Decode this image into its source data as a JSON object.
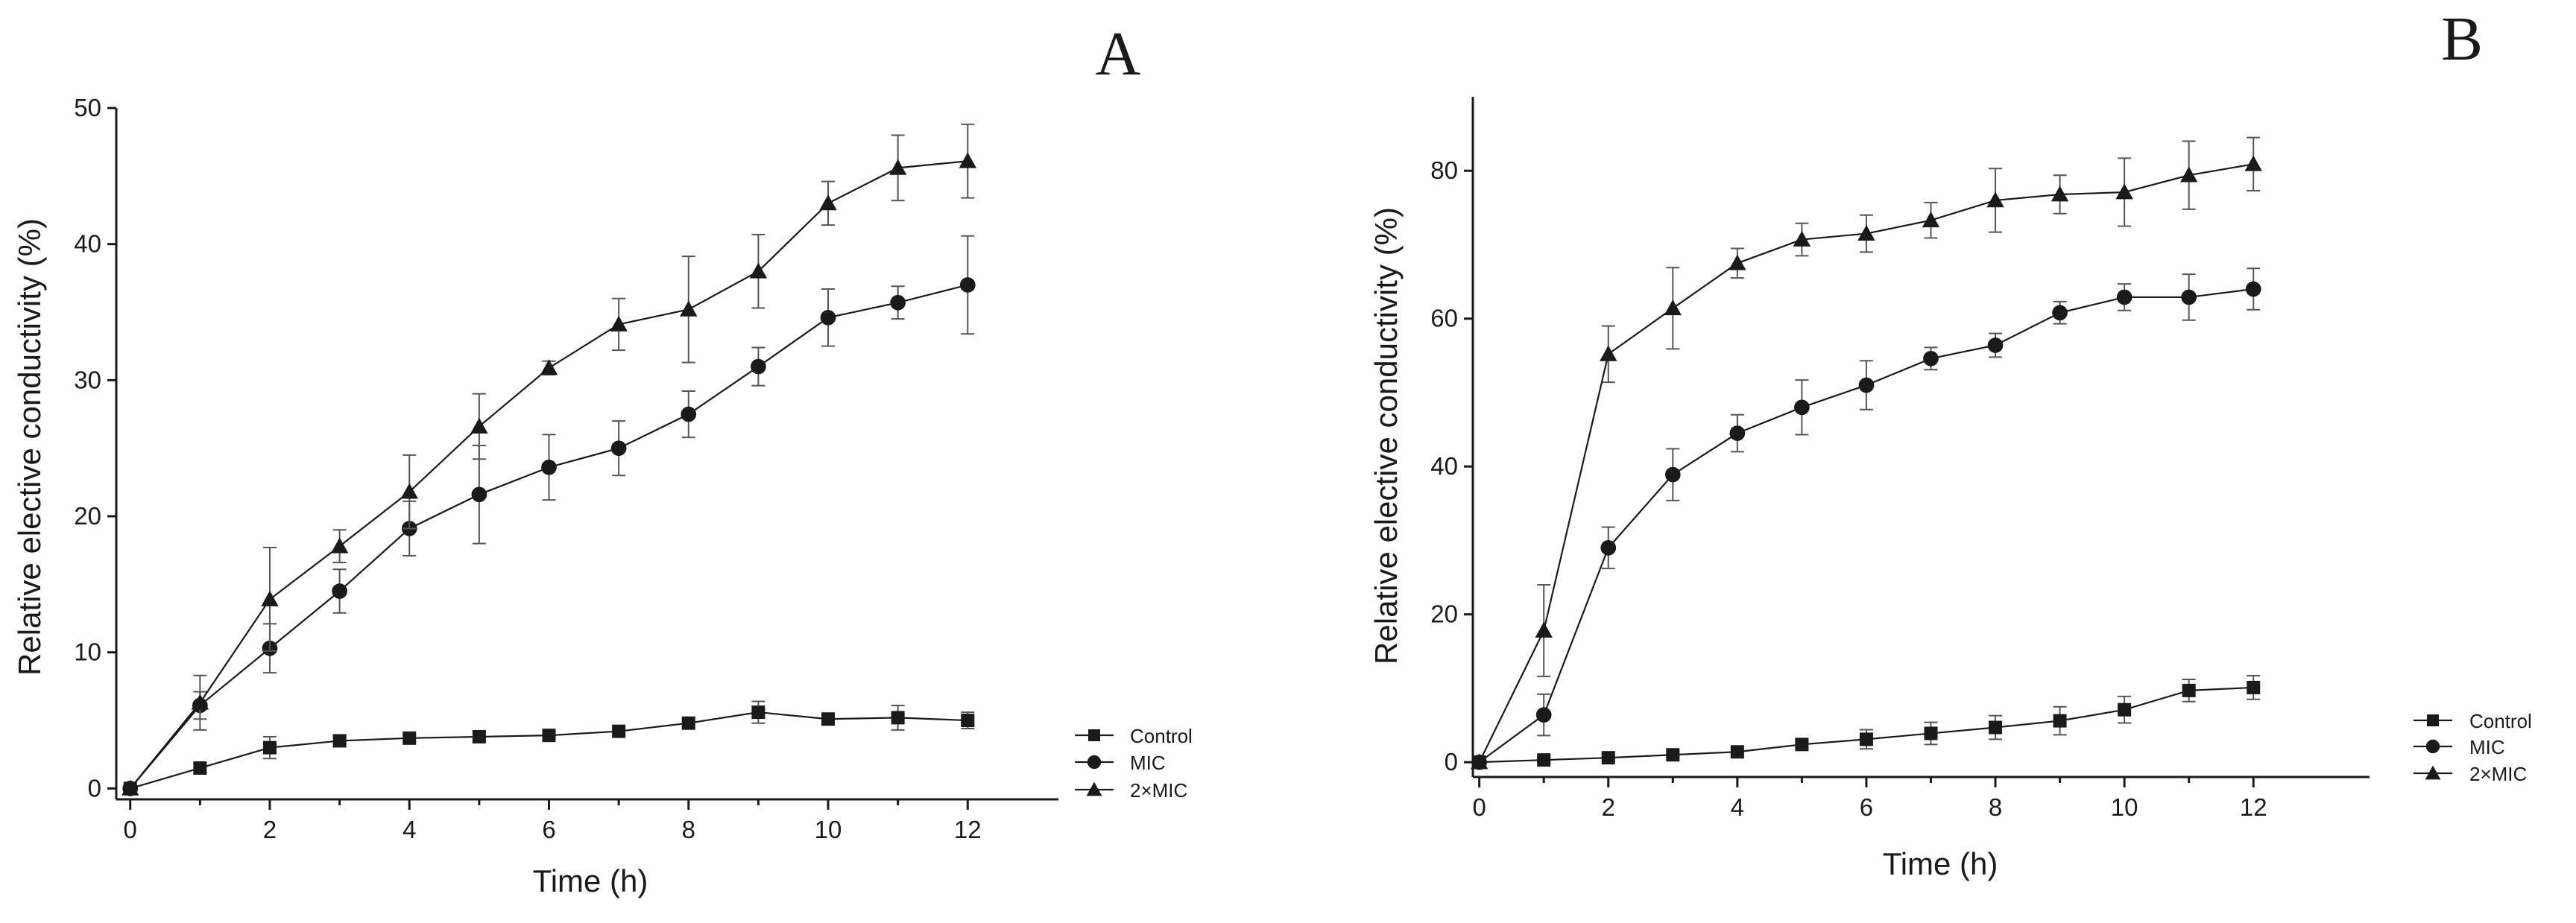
{
  "colors": {
    "ink": "#1a1a1a",
    "background": "#ffffff"
  },
  "chart_data": [
    {
      "type": "line",
      "panel_label": "A",
      "xlabel": "Time (h)",
      "ylabel": "Relative elective conductivity (%)",
      "xlim": [
        -0.2,
        13.3
      ],
      "ylim": [
        -0.8,
        50
      ],
      "xticks": [
        0,
        2,
        4,
        6,
        8,
        10,
        12
      ],
      "yticks": [
        0,
        10,
        20,
        30,
        40,
        50
      ],
      "legend_position": "bottom-right",
      "x": [
        0,
        1,
        2,
        3,
        4,
        5,
        6,
        7,
        8,
        9,
        10,
        11,
        12
      ],
      "series": [
        {
          "name": "Control",
          "marker": "square",
          "values": [
            0,
            1.5,
            3,
            3.5,
            3.7,
            3.8,
            3.9,
            4.2,
            4.8,
            5.6,
            5.1,
            5.2,
            5.0
          ],
          "errors": [
            0,
            0.3,
            0.8,
            0.4,
            0.3,
            0.3,
            0.3,
            0.3,
            0.3,
            0.8,
            0.4,
            0.9,
            0.6
          ]
        },
        {
          "name": "MIC",
          "marker": "circle",
          "values": [
            0,
            6.1,
            10.3,
            14.5,
            19.1,
            21.6,
            23.6,
            25.0,
            27.5,
            31.0,
            34.6,
            35.7,
            37.0
          ],
          "errors": [
            0,
            1.0,
            1.8,
            1.6,
            2.0,
            3.6,
            2.4,
            2.0,
            1.7,
            1.4,
            2.1,
            1.2,
            3.6
          ]
        },
        {
          "name": "2×MIC",
          "marker": "triangle",
          "values": [
            0,
            6.3,
            13.9,
            17.8,
            21.8,
            26.6,
            30.9,
            34.1,
            35.2,
            38.0,
            43.0,
            45.6,
            46.1
          ],
          "errors": [
            0,
            2.0,
            3.8,
            1.2,
            2.7,
            2.4,
            0.5,
            1.9,
            3.9,
            2.7,
            1.6,
            2.4,
            2.7
          ]
        }
      ]
    },
    {
      "type": "line",
      "panel_label": "B",
      "xlabel": "Time (h)",
      "ylabel": "Relative elective conductivity (%)",
      "xlim": [
        -0.1,
        13.8
      ],
      "ylim": [
        -2,
        90
      ],
      "xticks": [
        0,
        2,
        4,
        6,
        8,
        10,
        12
      ],
      "yticks": [
        0,
        20,
        40,
        60,
        80
      ],
      "legend_position": "bottom-right",
      "x": [
        0,
        1,
        2,
        3,
        4,
        5,
        6,
        7,
        8,
        9,
        10,
        11,
        12
      ],
      "series": [
        {
          "name": "Control",
          "marker": "square",
          "values": [
            0,
            0.3,
            0.6,
            1.0,
            1.4,
            2.4,
            3.1,
            3.9,
            4.7,
            5.6,
            7.1,
            9.7,
            10.1
          ],
          "errors": [
            0,
            0.2,
            0.2,
            0.3,
            0.4,
            0.6,
            1.3,
            1.5,
            1.6,
            1.9,
            1.8,
            1.5,
            1.6
          ]
        },
        {
          "name": "MIC",
          "marker": "circle",
          "values": [
            0,
            6.4,
            29.0,
            38.9,
            44.5,
            48.0,
            51.0,
            54.6,
            56.4,
            60.8,
            62.9,
            62.9,
            64.0
          ],
          "errors": [
            0,
            2.8,
            2.8,
            3.5,
            2.5,
            3.7,
            3.3,
            1.5,
            1.6,
            1.5,
            1.8,
            3.1,
            2.8
          ]
        },
        {
          "name": "2×MIC",
          "marker": "triangle",
          "values": [
            0,
            17.8,
            55.2,
            61.4,
            67.5,
            70.7,
            71.5,
            73.3,
            76.0,
            76.8,
            77.1,
            79.4,
            80.9
          ],
          "errors": [
            0,
            6.2,
            3.8,
            5.5,
            2.0,
            2.2,
            2.5,
            2.4,
            4.3,
            2.6,
            4.6,
            4.6,
            3.6
          ]
        }
      ]
    }
  ]
}
